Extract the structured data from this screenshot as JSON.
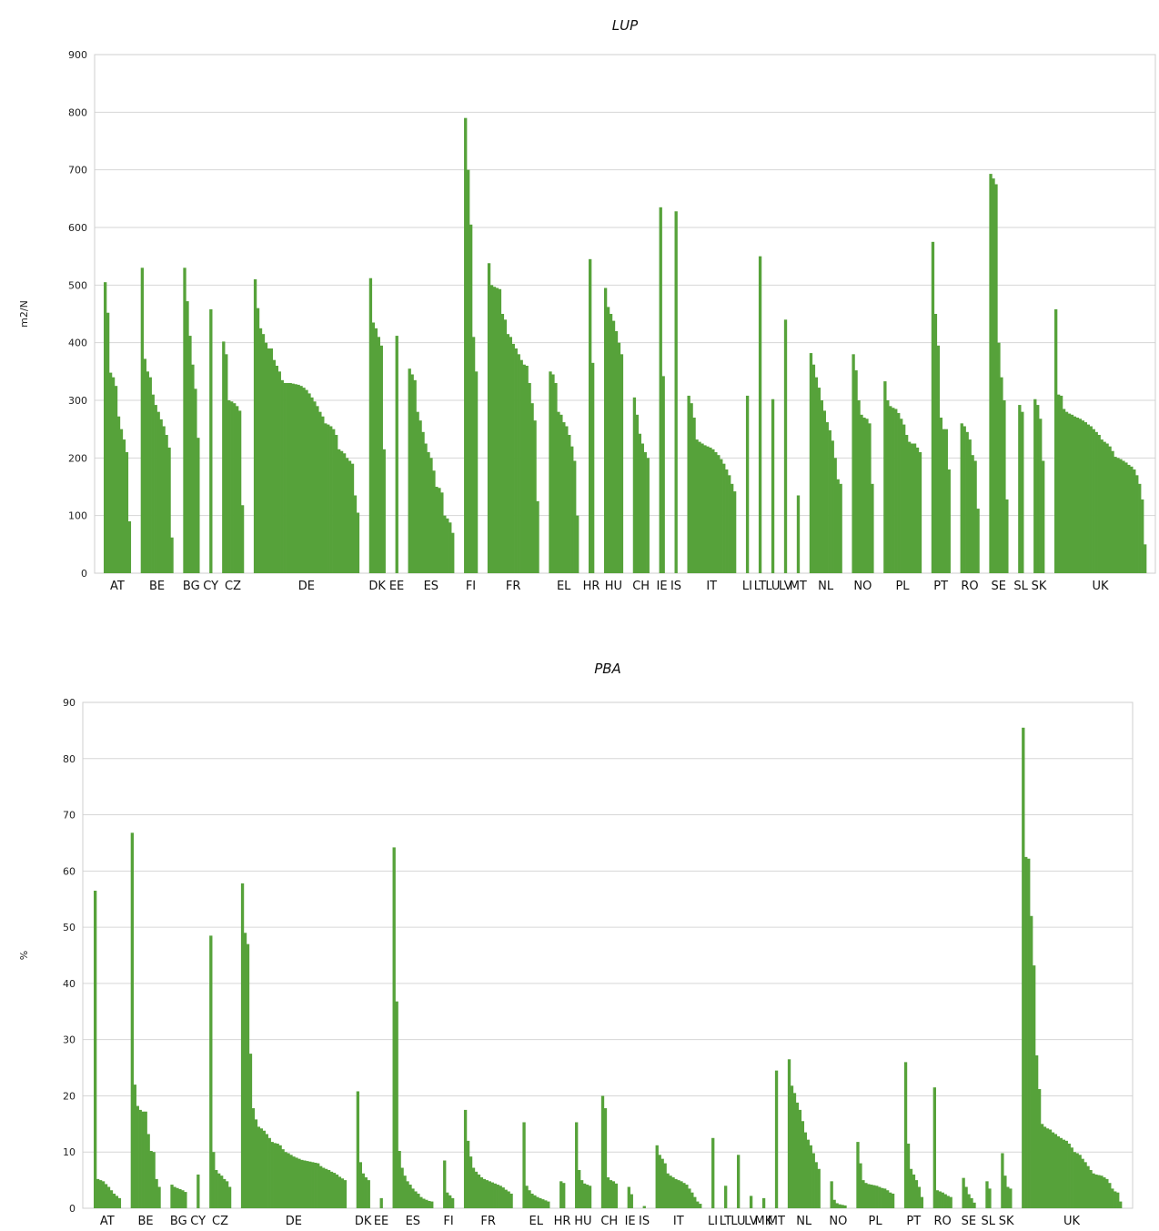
{
  "colors": {
    "bar": "#56a23a",
    "grid": "#d6d6d6"
  },
  "chart_data": [
    {
      "type": "bar",
      "title": "LUP",
      "xlabel": "",
      "ylabel": "m2/N",
      "ylim": [
        0,
        900
      ],
      "yticks": [
        0,
        100,
        200,
        300,
        400,
        500,
        600,
        700,
        800,
        900
      ],
      "grid": true,
      "groups": [
        {
          "label": "AT",
          "values": [
            505,
            452,
            348,
            340,
            325,
            272,
            250,
            232,
            210,
            90
          ]
        },
        {
          "label": "BE",
          "values": [
            530,
            372,
            350,
            340,
            310,
            292,
            280,
            267,
            255,
            240,
            218,
            62
          ]
        },
        {
          "label": "BG",
          "values": [
            530,
            472,
            412,
            362,
            320,
            235
          ]
        },
        {
          "label": "CY",
          "values": [
            458
          ]
        },
        {
          "label": "CZ",
          "values": [
            402,
            380,
            300,
            298,
            295,
            290,
            282,
            118
          ]
        },
        {
          "label": "DE",
          "values": [
            510,
            460,
            425,
            415,
            400,
            390,
            390,
            370,
            360,
            350,
            335,
            330,
            330,
            330,
            329,
            328,
            327,
            325,
            322,
            318,
            312,
            305,
            298,
            290,
            280,
            272,
            260,
            258,
            255,
            250,
            240,
            215,
            212,
            208,
            200,
            195,
            190,
            135,
            105
          ]
        },
        {
          "label": "DK",
          "values": [
            512,
            435,
            425,
            410,
            395,
            215
          ]
        },
        {
          "label": "EE",
          "values": [
            412
          ]
        },
        {
          "label": "ES",
          "values": [
            355,
            345,
            335,
            280,
            265,
            245,
            225,
            210,
            200,
            178,
            150,
            148,
            140,
            100,
            95,
            88,
            70
          ]
        },
        {
          "label": "FI",
          "values": [
            790,
            700,
            605,
            410,
            350
          ]
        },
        {
          "label": "FR",
          "values": [
            538,
            500,
            497,
            495,
            493,
            450,
            440,
            415,
            410,
            398,
            390,
            380,
            370,
            362,
            360,
            330,
            295,
            265,
            125
          ]
        },
        {
          "label": "EL",
          "values": [
            350,
            345,
            330,
            280,
            275,
            262,
            255,
            240,
            220,
            195,
            100
          ]
        },
        {
          "label": "HR",
          "values": [
            545,
            365
          ]
        },
        {
          "label": "HU",
          "values": [
            495,
            462,
            450,
            438,
            420,
            400,
            380
          ]
        },
        {
          "label": "CH",
          "values": [
            305,
            275,
            242,
            225,
            210,
            200
          ]
        },
        {
          "label": "IE",
          "values": [
            635,
            342
          ]
        },
        {
          "label": "IS",
          "values": [
            628
          ]
        },
        {
          "label": "IT",
          "values": [
            308,
            295,
            270,
            232,
            228,
            225,
            222,
            220,
            218,
            215,
            210,
            205,
            198,
            190,
            180,
            170,
            155,
            142
          ]
        },
        {
          "label": "LI",
          "values": [
            308
          ]
        },
        {
          "label": "LT",
          "values": [
            550
          ]
        },
        {
          "label": "LU",
          "values": [
            302
          ]
        },
        {
          "label": "LV",
          "values": [
            440
          ]
        },
        {
          "label": "MT",
          "values": [
            135
          ]
        },
        {
          "label": "NL",
          "values": [
            382,
            362,
            340,
            322,
            300,
            282,
            262,
            248,
            230,
            200,
            163,
            155
          ]
        },
        {
          "label": "NO",
          "values": [
            380,
            352,
            300,
            275,
            270,
            268,
            260,
            155
          ]
        },
        {
          "label": "PL",
          "values": [
            333,
            300,
            290,
            287,
            285,
            278,
            268,
            258,
            240,
            228,
            225,
            225,
            218,
            210
          ]
        },
        {
          "label": "PT",
          "values": [
            575,
            450,
            395,
            270,
            250,
            250,
            180
          ]
        },
        {
          "label": "RO",
          "values": [
            260,
            255,
            245,
            232,
            205,
            195,
            112
          ]
        },
        {
          "label": "SE",
          "values": [
            693,
            685,
            675,
            400,
            340,
            300,
            128
          ]
        },
        {
          "label": "SL",
          "values": [
            292,
            280
          ]
        },
        {
          "label": "SK",
          "values": [
            302,
            292,
            268,
            195
          ]
        },
        {
          "label": "UK",
          "values": [
            458,
            310,
            308,
            285,
            280,
            277,
            275,
            272,
            270,
            268,
            265,
            262,
            258,
            255,
            250,
            245,
            240,
            232,
            228,
            225,
            220,
            212,
            202,
            200,
            198,
            195,
            192,
            188,
            185,
            180,
            170,
            155,
            128,
            50
          ]
        }
      ]
    },
    {
      "type": "bar",
      "title": "PBA",
      "xlabel": "",
      "ylabel": "%",
      "ylim": [
        0,
        90
      ],
      "yticks": [
        0,
        10,
        20,
        30,
        40,
        50,
        60,
        70,
        80,
        90
      ],
      "grid": true,
      "groups": [
        {
          "label": "AT",
          "values": [
            56.5,
            5.2,
            5.0,
            4.8,
            4.3,
            3.8,
            3.2,
            2.6,
            2.2,
            1.8
          ]
        },
        {
          "label": "BE",
          "values": [
            66.8,
            22.0,
            18.2,
            17.5,
            17.2,
            17.2,
            13.2,
            10.2,
            10.0,
            5.2,
            3.8
          ]
        },
        {
          "label": "BG",
          "values": [
            4.2,
            3.8,
            3.6,
            3.4,
            3.2,
            2.9
          ]
        },
        {
          "label": "CY",
          "values": [
            6.0
          ]
        },
        {
          "label": "CZ",
          "values": [
            48.5,
            10.0,
            6.8,
            6.2,
            5.8,
            5.2,
            4.8,
            3.8
          ]
        },
        {
          "label": "DE",
          "values": [
            57.8,
            49.0,
            47.0,
            27.5,
            17.8,
            15.8,
            14.5,
            14.2,
            13.8,
            13.2,
            12.5,
            11.8,
            11.6,
            11.5,
            11.2,
            10.5,
            10.0,
            9.8,
            9.5,
            9.2,
            9.0,
            8.8,
            8.6,
            8.5,
            8.4,
            8.3,
            8.2,
            8.1,
            8.0,
            7.5,
            7.2,
            7.0,
            6.8,
            6.5,
            6.3,
            6.0,
            5.6,
            5.3,
            5.0
          ]
        },
        {
          "label": "DK",
          "values": [
            20.8,
            8.2,
            6.2,
            5.5,
            5.0
          ]
        },
        {
          "label": "EE",
          "values": [
            1.8
          ]
        },
        {
          "label": "ES",
          "values": [
            64.2,
            36.8,
            10.2,
            7.2,
            5.8,
            4.8,
            4.2,
            3.5,
            3.0,
            2.6,
            2.0,
            1.7,
            1.5,
            1.3,
            1.2
          ]
        },
        {
          "label": "FI",
          "values": [
            8.5,
            2.8,
            2.3,
            1.8
          ]
        },
        {
          "label": "FR",
          "values": [
            17.5,
            12.0,
            9.2,
            7.2,
            6.5,
            6.0,
            5.5,
            5.2,
            5.0,
            4.8,
            4.6,
            4.4,
            4.2,
            4.0,
            3.7,
            3.3,
            3.0,
            2.6
          ]
        },
        {
          "label": "EL",
          "values": [
            15.3,
            4.0,
            3.2,
            2.6,
            2.3,
            2.0,
            1.8,
            1.6,
            1.4,
            1.2
          ]
        },
        {
          "label": "HR",
          "values": [
            4.8,
            4.5
          ]
        },
        {
          "label": "HU",
          "values": [
            15.3,
            6.8,
            5.0,
            4.4,
            4.2,
            4.0
          ]
        },
        {
          "label": "CH",
          "values": [
            20.0,
            17.8,
            5.5,
            5.0,
            4.8,
            4.4
          ]
        },
        {
          "label": "IE",
          "values": [
            3.8,
            2.5
          ]
        },
        {
          "label": "IS",
          "values": [
            0.4
          ]
        },
        {
          "label": "IT",
          "values": [
            11.2,
            9.5,
            8.8,
            8.0,
            6.2,
            5.8,
            5.5,
            5.2,
            5.0,
            4.8,
            4.5,
            4.2,
            3.5,
            2.8,
            2.0,
            1.2,
            0.8
          ]
        },
        {
          "label": "LI",
          "values": [
            12.5
          ]
        },
        {
          "label": "LT",
          "values": [
            4.0
          ]
        },
        {
          "label": "LU",
          "values": [
            9.5
          ]
        },
        {
          "label": "LV",
          "values": [
            2.2
          ]
        },
        {
          "label": "MK",
          "values": [
            1.8
          ]
        },
        {
          "label": "MT",
          "values": [
            24.5
          ]
        },
        {
          "label": "NL",
          "values": [
            26.5,
            21.8,
            20.5,
            18.8,
            17.5,
            15.5,
            13.5,
            12.2,
            11.2,
            9.8,
            8.2,
            7.0
          ]
        },
        {
          "label": "NO",
          "values": [
            4.8,
            1.5,
            0.9,
            0.7,
            0.6,
            0.5
          ]
        },
        {
          "label": "PL",
          "values": [
            11.8,
            8.0,
            5.0,
            4.5,
            4.3,
            4.2,
            4.1,
            4.0,
            3.8,
            3.6,
            3.5,
            3.2,
            2.8,
            2.6
          ]
        },
        {
          "label": "PT",
          "values": [
            26.0,
            11.5,
            7.0,
            6.0,
            5.0,
            3.8,
            2.0
          ]
        },
        {
          "label": "RO",
          "values": [
            21.5,
            3.2,
            3.0,
            2.8,
            2.5,
            2.2,
            2.0
          ]
        },
        {
          "label": "SE",
          "values": [
            5.4,
            3.8,
            2.5,
            1.8,
            1.0
          ]
        },
        {
          "label": "SL",
          "values": [
            4.8,
            3.5
          ]
        },
        {
          "label": "SK",
          "values": [
            9.8,
            5.8,
            3.8,
            3.5
          ]
        },
        {
          "label": "UK",
          "values": [
            85.5,
            62.5,
            62.2,
            52.0,
            43.2,
            27.2,
            21.2,
            15.0,
            14.5,
            14.2,
            14.0,
            13.5,
            13.2,
            12.8,
            12.5,
            12.2,
            12.0,
            11.5,
            10.8,
            10.0,
            9.8,
            9.5,
            8.8,
            8.2,
            7.5,
            6.8,
            6.2,
            6.0,
            5.9,
            5.8,
            5.5,
            5.2,
            4.5,
            3.5,
            3.0,
            2.8,
            1.2
          ]
        }
      ]
    }
  ]
}
